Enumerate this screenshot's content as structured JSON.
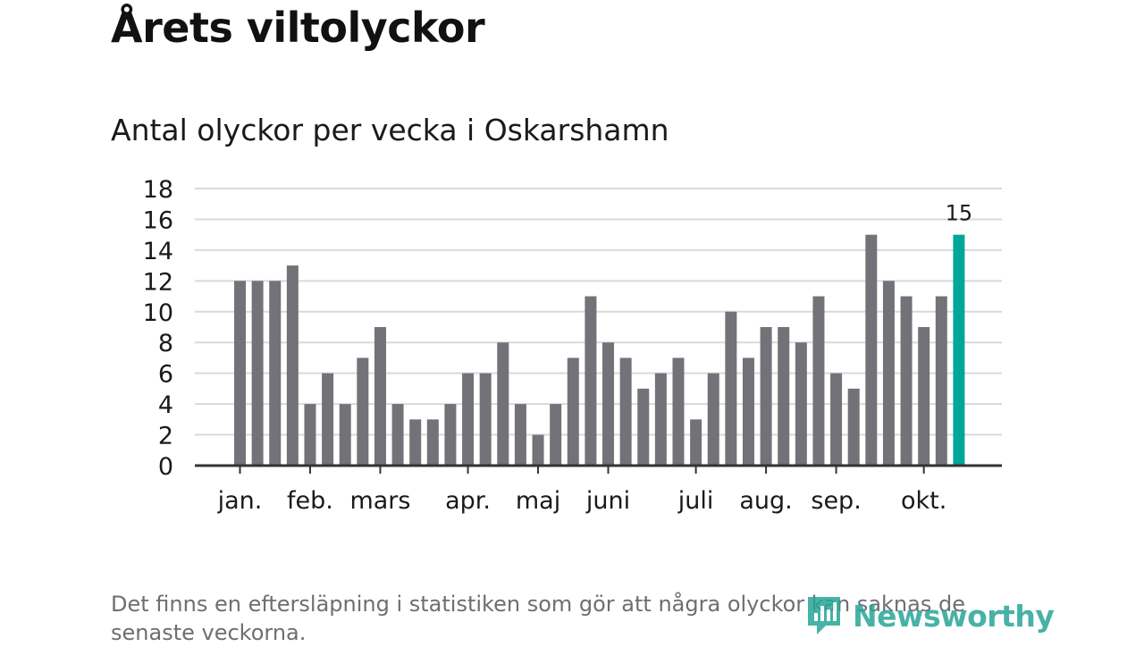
{
  "header": {
    "title": "Årets viltolyckor",
    "subtitle": "Antal olyckor per vecka i Oskarshamn"
  },
  "footer": {
    "note": "Det finns en eftersläpning i statistiken som gör att några olyckor kan saknas de senaste veckorna.",
    "brand": "Newsworthy"
  },
  "colors": {
    "bar": "#737278",
    "highlight": "#00a699",
    "grid": "#d9d9d9",
    "axis": "#333333",
    "brand": "#27a597"
  },
  "chart_data": {
    "type": "bar",
    "title": "Antal olyckor per vecka i Oskarshamn",
    "xlabel": "",
    "ylabel": "",
    "ylim": [
      0,
      18
    ],
    "yticks": [
      0,
      2,
      4,
      6,
      8,
      10,
      12,
      14,
      16,
      18
    ],
    "grid": true,
    "values": [
      12,
      12,
      12,
      13,
      4,
      6,
      4,
      7,
      9,
      4,
      3,
      3,
      4,
      6,
      6,
      8,
      4,
      2,
      4,
      7,
      11,
      8,
      7,
      5,
      6,
      7,
      3,
      6,
      10,
      7,
      9,
      9,
      8,
      11,
      6,
      5,
      15,
      12,
      11,
      9,
      11,
      15
    ],
    "highlight_index": 41,
    "highlight_label": "15",
    "month_labels": [
      {
        "label": "jan.",
        "bar": 0
      },
      {
        "label": "feb.",
        "bar": 4
      },
      {
        "label": "mars",
        "bar": 8
      },
      {
        "label": "apr.",
        "bar": 13
      },
      {
        "label": "maj",
        "bar": 17
      },
      {
        "label": "juni",
        "bar": 21
      },
      {
        "label": "juli",
        "bar": 26
      },
      {
        "label": "aug.",
        "bar": 30
      },
      {
        "label": "sep.",
        "bar": 34
      },
      {
        "label": "okt.",
        "bar": 39
      }
    ]
  }
}
